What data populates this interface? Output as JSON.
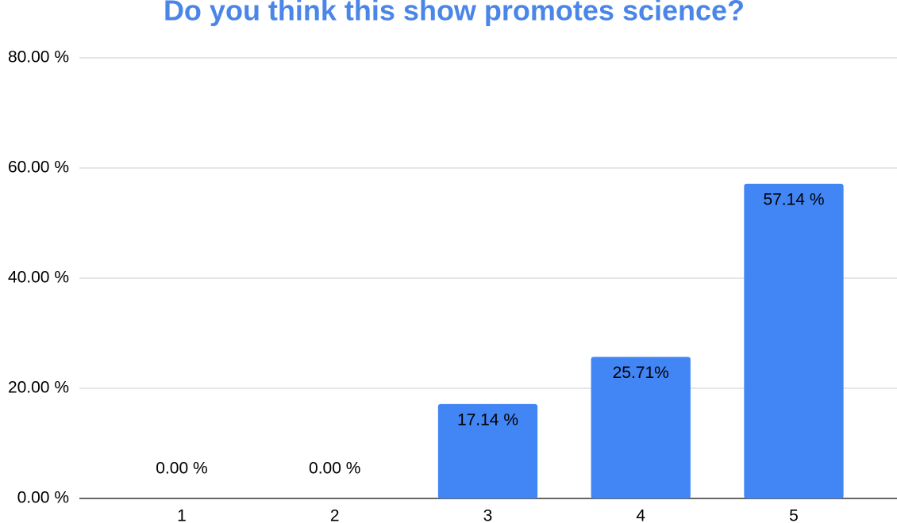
{
  "chart_data": {
    "type": "bar",
    "title": "Do you think this show promotes science?",
    "categories": [
      "1",
      "2",
      "3",
      "4",
      "5"
    ],
    "values": [
      0,
      0,
      17.14,
      25.71,
      57.14
    ],
    "value_labels": [
      "0.00 %",
      "0.00 %",
      "17.14 %",
      "25.71%",
      "57.14 %"
    ],
    "color": "#4285f4",
    "ylim": [
      0,
      80
    ],
    "yticks": [
      {
        "value": 0,
        "label": "0.00 %"
      },
      {
        "value": 20,
        "label": "20.00 %"
      },
      {
        "value": 40,
        "label": "40.00 %"
      },
      {
        "value": 60,
        "label": "60.00 %"
      },
      {
        "value": 80,
        "label": "80.00 %"
      }
    ],
    "grid": true
  }
}
